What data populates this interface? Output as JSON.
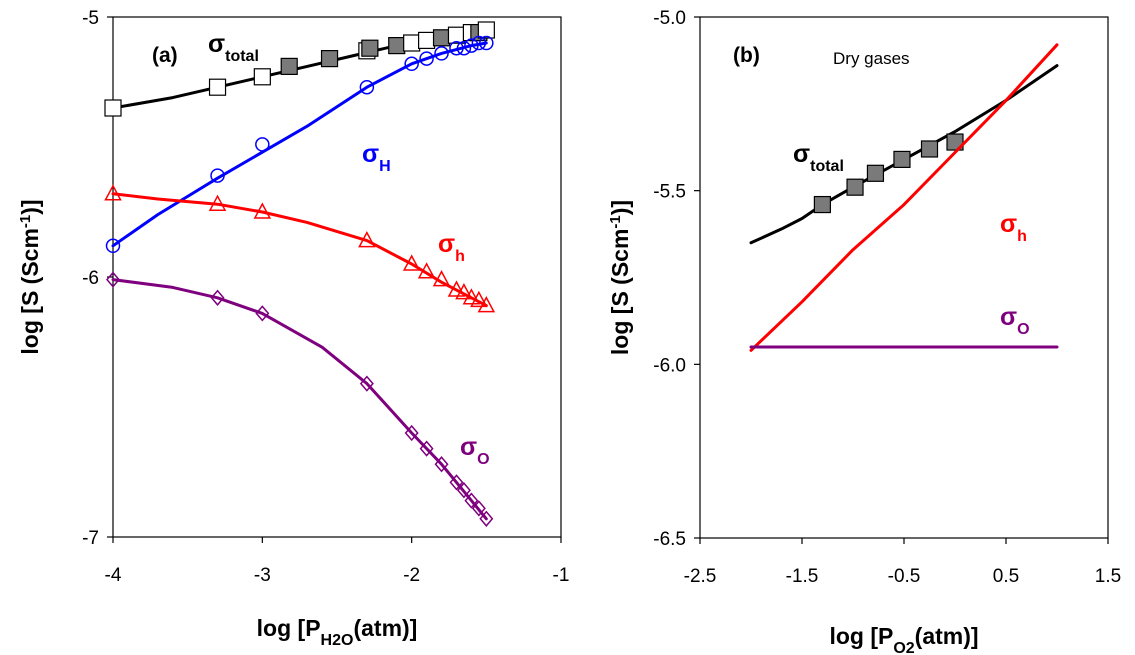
{
  "chart_data": [
    {
      "type": "line",
      "panel_label": "(a)",
      "xlabel": {
        "main": "log [P",
        "sub": "H2O",
        "end": "(atm)]"
      },
      "ylabel": {
        "main": "log [S (Scm",
        "sup": "-1",
        "end": ")]"
      },
      "xlim": [
        -4,
        -1
      ],
      "ylim": [
        -7,
        -5
      ],
      "xticks": [
        "-4",
        "-3",
        "-2",
        "-1"
      ],
      "yticks": [
        "-5",
        "-6",
        "-7"
      ],
      "grid": false,
      "series": [
        {
          "name": "σtotal",
          "label_main": "σ",
          "label_sub": "total",
          "color": "#000000",
          "line": {
            "x": [
              -4.0,
              -3.6,
              -3.3,
              -3.0,
              -2.7,
              -2.4,
              -2.1,
              -1.8,
              -1.5
            ],
            "y": [
              -5.35,
              -5.31,
              -5.27,
              -5.23,
              -5.19,
              -5.15,
              -5.11,
              -5.08,
              -5.06
            ]
          },
          "markers": [
            {
              "x": -4.0,
              "y": -5.35,
              "style": "open-square"
            },
            {
              "x": -3.3,
              "y": -5.27,
              "style": "open-square"
            },
            {
              "x": -3.0,
              "y": -5.23,
              "style": "open-square"
            },
            {
              "x": -2.82,
              "y": -5.19,
              "style": "filled-square"
            },
            {
              "x": -2.55,
              "y": -5.16,
              "style": "filled-square"
            },
            {
              "x": -2.3,
              "y": -5.13,
              "style": "open-square"
            },
            {
              "x": -2.28,
              "y": -5.12,
              "style": "filled-square"
            },
            {
              "x": -2.1,
              "y": -5.11,
              "style": "filled-square"
            },
            {
              "x": -2.0,
              "y": -5.1,
              "style": "open-square"
            },
            {
              "x": -1.9,
              "y": -5.09,
              "style": "open-square"
            },
            {
              "x": -1.8,
              "y": -5.08,
              "style": "filled-square"
            },
            {
              "x": -1.7,
              "y": -5.07,
              "style": "open-square"
            },
            {
              "x": -1.6,
              "y": -5.06,
              "style": "open-square"
            },
            {
              "x": -1.55,
              "y": -5.06,
              "style": "filled-square"
            },
            {
              "x": -1.5,
              "y": -5.05,
              "style": "open-square"
            }
          ]
        },
        {
          "name": "σH",
          "label_main": "σ",
          "label_sub": "H",
          "color": "#0000ff",
          "line": {
            "x": [
              -4.0,
              -3.7,
              -3.5,
              -3.3,
              -3.0,
              -2.7,
              -2.3,
              -2.0,
              -1.8,
              -1.6,
              -1.5
            ],
            "y": [
              -5.88,
              -5.76,
              -5.69,
              -5.62,
              -5.52,
              -5.42,
              -5.27,
              -5.18,
              -5.14,
              -5.11,
              -5.1
            ]
          },
          "markers": [
            {
              "x": -4.0,
              "y": -5.88,
              "style": "open-circle"
            },
            {
              "x": -3.3,
              "y": -5.61,
              "style": "open-circle"
            },
            {
              "x": -3.0,
              "y": -5.49,
              "style": "open-circle"
            },
            {
              "x": -2.3,
              "y": -5.27,
              "style": "open-circle"
            },
            {
              "x": -2.0,
              "y": -5.18,
              "style": "open-circle"
            },
            {
              "x": -1.9,
              "y": -5.16,
              "style": "open-circle"
            },
            {
              "x": -1.8,
              "y": -5.14,
              "style": "open-circle"
            },
            {
              "x": -1.7,
              "y": -5.12,
              "style": "open-circle"
            },
            {
              "x": -1.65,
              "y": -5.12,
              "style": "open-circle"
            },
            {
              "x": -1.6,
              "y": -5.11,
              "style": "open-circle"
            },
            {
              "x": -1.55,
              "y": -5.1,
              "style": "open-circle"
            },
            {
              "x": -1.5,
              "y": -5.1,
              "style": "open-circle"
            }
          ]
        },
        {
          "name": "σh",
          "label_main": "σ",
          "label_sub": "h",
          "color": "#ff0000",
          "line": {
            "x": [
              -4.0,
              -3.7,
              -3.3,
              -3.0,
              -2.7,
              -2.3,
              -2.0,
              -1.8,
              -1.6,
              -1.5
            ],
            "y": [
              -5.68,
              -5.7,
              -5.72,
              -5.75,
              -5.79,
              -5.86,
              -5.95,
              -6.02,
              -6.08,
              -6.11
            ]
          },
          "markers": [
            {
              "x": -4.0,
              "y": -5.68,
              "style": "open-triangle"
            },
            {
              "x": -3.3,
              "y": -5.72,
              "style": "open-triangle"
            },
            {
              "x": -3.0,
              "y": -5.75,
              "style": "open-triangle"
            },
            {
              "x": -2.3,
              "y": -5.86,
              "style": "open-triangle"
            },
            {
              "x": -2.0,
              "y": -5.95,
              "style": "open-triangle"
            },
            {
              "x": -1.9,
              "y": -5.98,
              "style": "open-triangle"
            },
            {
              "x": -1.8,
              "y": -6.01,
              "style": "open-triangle"
            },
            {
              "x": -1.7,
              "y": -6.05,
              "style": "open-triangle"
            },
            {
              "x": -1.65,
              "y": -6.06,
              "style": "open-triangle"
            },
            {
              "x": -1.6,
              "y": -6.08,
              "style": "open-triangle"
            },
            {
              "x": -1.55,
              "y": -6.09,
              "style": "open-triangle"
            },
            {
              "x": -1.5,
              "y": -6.11,
              "style": "open-triangle"
            }
          ]
        },
        {
          "name": "σO",
          "label_main": "σ",
          "label_sub": "O",
          "color": "#7f007f",
          "line": {
            "x": [
              -4.0,
              -3.6,
              -3.3,
              -3.0,
              -2.6,
              -2.3,
              -2.0,
              -1.8,
              -1.6,
              -1.5
            ],
            "y": [
              -6.01,
              -6.04,
              -6.08,
              -6.14,
              -6.27,
              -6.41,
              -6.6,
              -6.72,
              -6.86,
              -6.93
            ]
          },
          "markers": [
            {
              "x": -4.0,
              "y": -6.01,
              "style": "open-diamond"
            },
            {
              "x": -3.3,
              "y": -6.08,
              "style": "open-diamond"
            },
            {
              "x": -3.0,
              "y": -6.14,
              "style": "open-diamond"
            },
            {
              "x": -2.3,
              "y": -6.41,
              "style": "open-diamond"
            },
            {
              "x": -2.0,
              "y": -6.6,
              "style": "open-diamond"
            },
            {
              "x": -1.9,
              "y": -6.66,
              "style": "open-diamond"
            },
            {
              "x": -1.8,
              "y": -6.72,
              "style": "open-diamond"
            },
            {
              "x": -1.7,
              "y": -6.79,
              "style": "open-diamond"
            },
            {
              "x": -1.65,
              "y": -6.82,
              "style": "open-diamond"
            },
            {
              "x": -1.6,
              "y": -6.86,
              "style": "open-diamond"
            },
            {
              "x": -1.55,
              "y": -6.89,
              "style": "open-diamond"
            },
            {
              "x": -1.5,
              "y": -6.93,
              "style": "open-diamond"
            }
          ]
        }
      ]
    },
    {
      "type": "line",
      "panel_label": "(b)",
      "annotation": "Dry gases",
      "xlabel": {
        "main": "log [P",
        "sub": "O2",
        "end": "(atm)]"
      },
      "ylabel": {
        "main": "log [S (Scm",
        "sup": "-1",
        "end": ")]"
      },
      "xlim": [
        -2.5,
        1.5
      ],
      "ylim": [
        -6.5,
        -5.0
      ],
      "xticks": [
        "-2.5",
        "-1.5",
        "-0.5",
        "0.5",
        "1.5"
      ],
      "yticks": [
        "-5.0",
        "-5.5",
        "-6.0",
        "-6.5"
      ],
      "grid": false,
      "series": [
        {
          "name": "σtotal",
          "label_main": "σ",
          "label_sub": "total",
          "color": "#000000",
          "line": {
            "x": [
              -2.0,
              -1.7,
              -1.5,
              -1.3,
              -1.0,
              -0.5,
              0.0,
              0.5,
              1.0
            ],
            "y": [
              -5.65,
              -5.61,
              -5.58,
              -5.54,
              -5.49,
              -5.41,
              -5.33,
              -5.24,
              -5.14
            ]
          },
          "markers": [
            {
              "x": -1.3,
              "y": -5.54,
              "style": "filled-square"
            },
            {
              "x": -0.98,
              "y": -5.49,
              "style": "filled-square"
            },
            {
              "x": -0.78,
              "y": -5.45,
              "style": "filled-square"
            },
            {
              "x": -0.52,
              "y": -5.41,
              "style": "filled-square"
            },
            {
              "x": -0.25,
              "y": -5.38,
              "style": "filled-square"
            },
            {
              "x": 0.0,
              "y": -5.36,
              "style": "filled-square"
            }
          ]
        },
        {
          "name": "σh",
          "label_main": "σ",
          "label_sub": "h",
          "color": "#ff0000",
          "line": {
            "x": [
              -2.0,
              -1.5,
              -1.0,
              -0.5,
              0.0,
              0.5,
              1.0
            ],
            "y": [
              -5.96,
              -5.82,
              -5.67,
              -5.54,
              -5.39,
              -5.24,
              -5.08
            ]
          },
          "markers": []
        },
        {
          "name": "σO",
          "label_main": "σ",
          "label_sub": "O",
          "color": "#7f007f",
          "line": {
            "x": [
              -2.0,
              1.0
            ],
            "y": [
              -5.95,
              -5.95
            ]
          },
          "markers": []
        }
      ]
    }
  ]
}
